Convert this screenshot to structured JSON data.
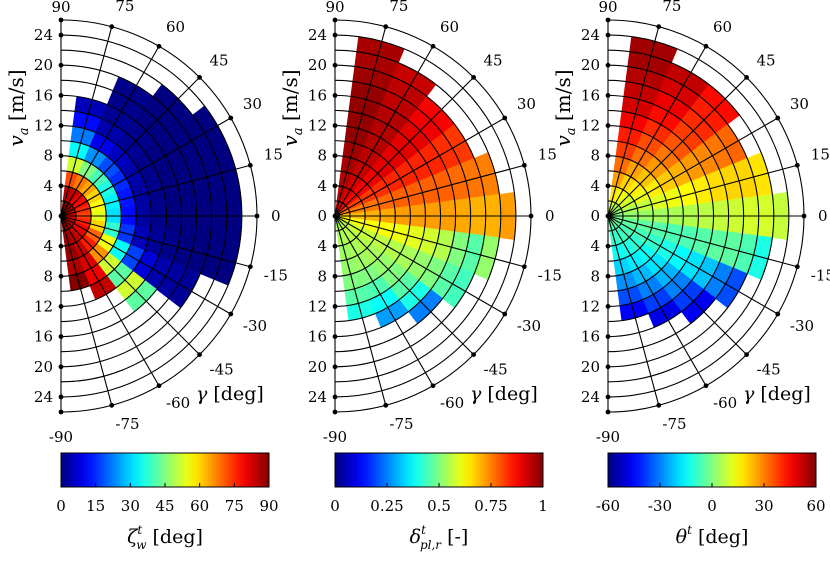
{
  "chart_data": [
    {
      "type": "heatmap",
      "subtype": "polar-half",
      "colormap": "jet",
      "ylabel_main": "v",
      "ylabel_sub": "a",
      "ylabel_unit": "[m/s]",
      "xlabel_main": "γ",
      "xlabel_unit": "[deg]",
      "angle_ticks": [
        90,
        75,
        60,
        45,
        30,
        15,
        0,
        -15,
        -30,
        -45,
        -60,
        -75,
        -90
      ],
      "speed_ticks_upper": [
        24,
        20,
        16,
        12,
        8,
        4,
        0
      ],
      "speed_ticks_lower": [
        4,
        8,
        12,
        16,
        20,
        24
      ],
      "radial_range": [
        0,
        26
      ],
      "grid": true,
      "colorbar": {
        "label_main": "ζ",
        "label_sup": "t",
        "label_sub": "w",
        "label_unit": "[deg]",
        "ticks": [
          "0",
          "15",
          "30",
          "45",
          "60",
          "75",
          "90"
        ],
        "range": [
          0,
          90
        ]
      },
      "angles_deg": [
        75,
        60,
        45,
        30,
        15,
        0,
        -15,
        -30,
        -45,
        -60,
        -75
      ],
      "speeds_ms": [
        1,
        2,
        3,
        4,
        5,
        6,
        7,
        8,
        9,
        10,
        11,
        12
      ],
      "values": [
        [
          90,
          86,
          72,
          52,
          34,
          22,
          12,
          5,
          null,
          null,
          null,
          null
        ],
        [
          90,
          84,
          68,
          45,
          24,
          10,
          4,
          2,
          1,
          1,
          null,
          null
        ],
        [
          88,
          80,
          64,
          40,
          18,
          6,
          2,
          1,
          0,
          0,
          0,
          null
        ],
        [
          86,
          78,
          60,
          36,
          15,
          4,
          1,
          0,
          0,
          0,
          0,
          0
        ],
        [
          84,
          75,
          56,
          33,
          13,
          3,
          1,
          0,
          0,
          0,
          0,
          0
        ],
        [
          82,
          73,
          54,
          31,
          12,
          3,
          1,
          0,
          0,
          0,
          0,
          0
        ],
        [
          82,
          76,
          60,
          38,
          16,
          5,
          2,
          1,
          0,
          0,
          0,
          0
        ],
        [
          84,
          80,
          70,
          55,
          34,
          17,
          8,
          4,
          3,
          2,
          null,
          null
        ],
        [
          86,
          82,
          76,
          66,
          52,
          42,
          52,
          42,
          null,
          null,
          null,
          null
        ],
        [
          88,
          85,
          84,
          82,
          80,
          84,
          null,
          null,
          null,
          null,
          null,
          null
        ],
        [
          90,
          88,
          88,
          86,
          90,
          null,
          null,
          null,
          null,
          null,
          null,
          null
        ]
      ]
    },
    {
      "type": "heatmap",
      "subtype": "polar-half",
      "colormap": "jet",
      "ylabel_main": "v",
      "ylabel_sub": "a",
      "ylabel_unit": "[m/s]",
      "xlabel_main": "γ",
      "xlabel_unit": "[deg]",
      "angle_ticks": [
        90,
        75,
        60,
        45,
        30,
        15,
        0,
        -15,
        -30,
        -45,
        -60,
        -75,
        -90
      ],
      "speed_ticks_upper": [
        24,
        20,
        16,
        12,
        8,
        4,
        0
      ],
      "speed_ticks_lower": [
        4,
        8,
        12,
        16,
        20,
        24
      ],
      "radial_range": [
        0,
        26
      ],
      "grid": true,
      "colorbar": {
        "label_main": "δ",
        "label_sup": "t",
        "label_sub": "pl,r",
        "label_unit": "[-]",
        "ticks": [
          "0",
          "0.25",
          "0.5",
          "0.75",
          "1"
        ],
        "range": [
          0,
          1
        ]
      },
      "angles_deg": [
        75,
        60,
        45,
        30,
        15,
        0,
        -15,
        -30,
        -45,
        -60,
        -75
      ],
      "speeds_ms": [
        1,
        2,
        3,
        4,
        5,
        6,
        7,
        8,
        9,
        10,
        11,
        12
      ],
      "values": [
        [
          0.93,
          0.94,
          0.95,
          0.96,
          0.97,
          0.98,
          0.98,
          0.98,
          0.98,
          0.97,
          0.96,
          0.96
        ],
        [
          0.9,
          0.91,
          0.92,
          0.93,
          0.94,
          0.95,
          0.95,
          0.95,
          0.94,
          0.94,
          0.93,
          null
        ],
        [
          0.86,
          0.87,
          0.88,
          0.89,
          0.9,
          0.9,
          0.9,
          0.9,
          0.89,
          0.88,
          null,
          null
        ],
        [
          0.8,
          0.81,
          0.82,
          0.83,
          0.84,
          0.84,
          0.84,
          0.84,
          0.83,
          0.82,
          null,
          null
        ],
        [
          0.74,
          0.75,
          0.76,
          0.77,
          0.78,
          0.78,
          0.78,
          0.78,
          0.77,
          0.76,
          0.75,
          null
        ],
        [
          0.68,
          0.69,
          0.7,
          0.71,
          0.72,
          0.72,
          0.72,
          0.72,
          0.71,
          0.7,
          0.7,
          0.72
        ],
        [
          0.62,
          0.62,
          0.62,
          0.62,
          0.61,
          0.6,
          0.58,
          0.55,
          0.5,
          0.46,
          0.52,
          null
        ],
        [
          0.58,
          0.58,
          0.57,
          0.56,
          0.55,
          0.54,
          0.52,
          0.5,
          0.46,
          0.44,
          null,
          null
        ],
        [
          0.56,
          0.56,
          0.55,
          0.54,
          0.52,
          0.5,
          0.46,
          0.4,
          0.25,
          null,
          null,
          null
        ],
        [
          0.55,
          0.55,
          0.54,
          0.53,
          0.5,
          0.45,
          0.38,
          0.28,
          null,
          null,
          null,
          null
        ],
        [
          0.54,
          0.54,
          0.53,
          0.52,
          0.5,
          0.46,
          0.4,
          null,
          null,
          null,
          null,
          null
        ]
      ]
    },
    {
      "type": "heatmap",
      "subtype": "polar-half",
      "colormap": "jet",
      "ylabel_main": "v",
      "ylabel_sub": "a",
      "ylabel_unit": "[m/s]",
      "xlabel_main": "γ",
      "xlabel_unit": "[deg]",
      "angle_ticks": [
        90,
        75,
        60,
        45,
        30,
        15,
        0,
        -15,
        -30,
        -45,
        -60,
        -75,
        -90
      ],
      "speed_ticks_upper": [
        24,
        20,
        16,
        12,
        8,
        4,
        0
      ],
      "speed_ticks_lower": [
        4,
        8,
        12,
        16,
        20,
        24
      ],
      "radial_range": [
        0,
        26
      ],
      "grid": true,
      "colorbar": {
        "label_main": "θ",
        "label_sup": "t",
        "label_sub": "",
        "label_unit": "[deg]",
        "ticks": [
          "-60",
          "-30",
          "0",
          "30",
          "60"
        ],
        "range": [
          -60,
          60
        ]
      },
      "angles_deg": [
        75,
        60,
        45,
        30,
        15,
        0,
        -15,
        -30,
        -45,
        -60,
        -75
      ],
      "speeds_ms": [
        1,
        2,
        3,
        4,
        5,
        6,
        7,
        8,
        9,
        10,
        11,
        12
      ],
      "values": [
        [
          10,
          18,
          26,
          32,
          38,
          42,
          46,
          50,
          52,
          54,
          56,
          56
        ],
        [
          8,
          14,
          20,
          26,
          32,
          36,
          40,
          44,
          47,
          50,
          52,
          null
        ],
        [
          6,
          12,
          17,
          22,
          27,
          31,
          35,
          38,
          40,
          42,
          44,
          null
        ],
        [
          4,
          9,
          13,
          17,
          21,
          24,
          27,
          29,
          31,
          33,
          null,
          null
        ],
        [
          2,
          5,
          8,
          11,
          13,
          15,
          17,
          19,
          20,
          20,
          18,
          null
        ],
        [
          0,
          2,
          3,
          4,
          5,
          6,
          7,
          8,
          9,
          10,
          10,
          8
        ],
        [
          -2,
          -3,
          -4,
          -5,
          -6,
          -6,
          -5,
          -4,
          -4,
          -6,
          -12,
          null
        ],
        [
          -3,
          -5,
          -7,
          -9,
          -12,
          -15,
          -18,
          -22,
          -30,
          -36,
          null,
          null
        ],
        [
          -4,
          -7,
          -10,
          -14,
          -18,
          -24,
          -30,
          -38,
          -46,
          null,
          null,
          null
        ],
        [
          -5,
          -8,
          -12,
          -17,
          -23,
          -30,
          -38,
          -48,
          null,
          null,
          null,
          null
        ],
        [
          -5,
          -9,
          -14,
          -20,
          -28,
          -36,
          -45,
          null,
          null,
          null,
          null,
          null
        ]
      ]
    }
  ]
}
